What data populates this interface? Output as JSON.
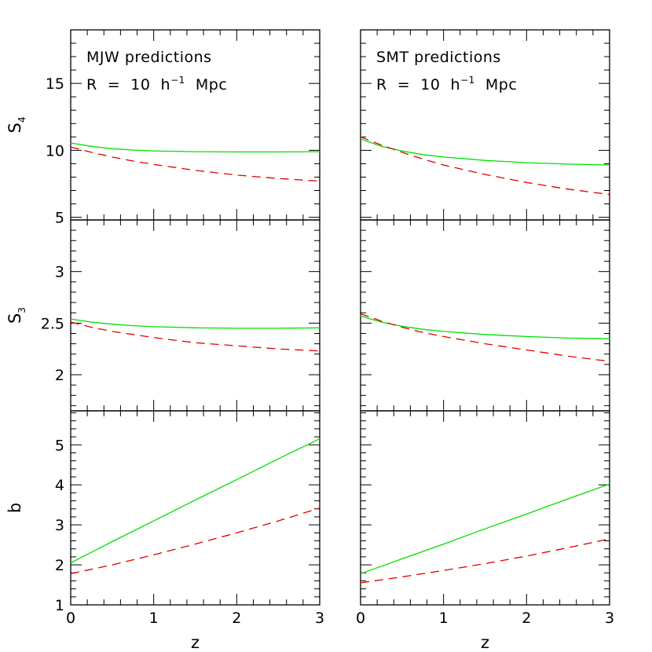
{
  "chart_data": {
    "type": "line",
    "layout": "3 rows x 2 columns",
    "xlabel": "z",
    "xlim": [
      0,
      3
    ],
    "xticks": [
      0,
      1,
      2,
      3
    ],
    "columns": [
      {
        "annotation_line1": "MJW predictions",
        "annotation_line2_prefix": "R  =  10  h",
        "annotation_line2_sup": "−1",
        "annotation_line2_suffix": "  Mpc"
      },
      {
        "annotation_line1": "SMT predictions",
        "annotation_line2_prefix": "R  =  10  h",
        "annotation_line2_sup": "−1",
        "annotation_line2_suffix": "  Mpc"
      }
    ],
    "rows": [
      {
        "ylabel_base": "S",
        "ylabel_sub": "4",
        "ylim": [
          4.8,
          19
        ],
        "yticks": [
          5,
          10,
          15
        ],
        "minor_step": 1
      },
      {
        "ylabel_base": "S",
        "ylabel_sub": "3",
        "ylim": [
          1.65,
          3.5
        ],
        "yticks": [
          2,
          2.5,
          3
        ],
        "minor_step": 0.1
      },
      {
        "ylabel_base": "b",
        "ylabel_sub": "",
        "ylim": [
          1,
          5.85
        ],
        "yticks": [
          1,
          2,
          3,
          4,
          5
        ],
        "minor_step": 0.2
      }
    ],
    "panels": [
      {
        "row": 0,
        "col": 0,
        "series": [
          {
            "style": "solid",
            "color": "#00e000",
            "x": [
              0,
              0.25,
              0.5,
              0.75,
              1,
              1.5,
              2,
              2.5,
              3
            ],
            "y": [
              10.55,
              10.3,
              10.12,
              10.02,
              9.96,
              9.9,
              9.88,
              9.88,
              9.9
            ]
          },
          {
            "style": "dashed",
            "color": "#e00000",
            "x": [
              0,
              0.25,
              0.5,
              0.75,
              1,
              1.5,
              2,
              2.5,
              3
            ],
            "y": [
              10.25,
              9.85,
              9.5,
              9.2,
              8.95,
              8.5,
              8.15,
              7.9,
              7.7
            ]
          }
        ]
      },
      {
        "row": 0,
        "col": 1,
        "series": [
          {
            "style": "solid",
            "color": "#00e000",
            "x": [
              0,
              0.25,
              0.5,
              0.75,
              1,
              1.5,
              2,
              2.5,
              3
            ],
            "y": [
              10.85,
              10.3,
              9.95,
              9.68,
              9.5,
              9.25,
              9.08,
              8.97,
              8.9
            ]
          },
          {
            "style": "dashed",
            "color": "#e00000",
            "x": [
              0,
              0.25,
              0.5,
              0.75,
              1,
              1.5,
              2,
              2.5,
              3
            ],
            "y": [
              11.0,
              10.4,
              9.85,
              9.35,
              8.9,
              8.2,
              7.6,
              7.1,
              6.7
            ]
          }
        ]
      },
      {
        "row": 1,
        "col": 0,
        "series": [
          {
            "style": "solid",
            "color": "#00e000",
            "x": [
              0,
              0.25,
              0.5,
              0.75,
              1,
              1.5,
              2,
              2.5,
              3
            ],
            "y": [
              2.54,
              2.51,
              2.49,
              2.475,
              2.465,
              2.455,
              2.45,
              2.45,
              2.455
            ]
          },
          {
            "style": "dashed",
            "color": "#e00000",
            "x": [
              0,
              0.25,
              0.5,
              0.75,
              1,
              1.5,
              2,
              2.5,
              3
            ],
            "y": [
              2.51,
              2.46,
              2.42,
              2.39,
              2.36,
              2.31,
              2.28,
              2.25,
              2.23
            ]
          }
        ]
      },
      {
        "row": 1,
        "col": 1,
        "series": [
          {
            "style": "solid",
            "color": "#00e000",
            "x": [
              0,
              0.25,
              0.5,
              0.75,
              1,
              1.5,
              2,
              2.5,
              3
            ],
            "y": [
              2.57,
              2.51,
              2.47,
              2.44,
              2.42,
              2.39,
              2.37,
              2.355,
              2.35
            ]
          },
          {
            "style": "dashed",
            "color": "#e00000",
            "x": [
              0,
              0.25,
              0.5,
              0.75,
              1,
              1.5,
              2,
              2.5,
              3
            ],
            "y": [
              2.59,
              2.52,
              2.46,
              2.41,
              2.37,
              2.3,
              2.24,
              2.18,
              2.13
            ]
          }
        ]
      },
      {
        "row": 2,
        "col": 0,
        "series": [
          {
            "style": "solid",
            "color": "#00e000",
            "x": [
              0,
              0.5,
              1,
              1.5,
              2,
              2.5,
              3
            ],
            "y": [
              2.05,
              2.58,
              3.1,
              3.62,
              4.13,
              4.65,
              5.15
            ]
          },
          {
            "style": "dashed",
            "color": "#e00000",
            "x": [
              0,
              0.5,
              1,
              1.5,
              2,
              2.5,
              3
            ],
            "y": [
              1.78,
              2.0,
              2.25,
              2.52,
              2.8,
              3.1,
              3.42
            ]
          }
        ]
      },
      {
        "row": 2,
        "col": 1,
        "series": [
          {
            "style": "solid",
            "color": "#00e000",
            "x": [
              0,
              0.5,
              1,
              1.5,
              2,
              2.5,
              3
            ],
            "y": [
              1.78,
              2.15,
              2.52,
              2.9,
              3.27,
              3.65,
              4.02
            ]
          },
          {
            "style": "dashed",
            "color": "#e00000",
            "x": [
              0,
              0.5,
              1,
              1.5,
              2,
              2.5,
              3
            ],
            "y": [
              1.55,
              1.7,
              1.86,
              2.03,
              2.22,
              2.43,
              2.65
            ]
          }
        ]
      }
    ]
  }
}
